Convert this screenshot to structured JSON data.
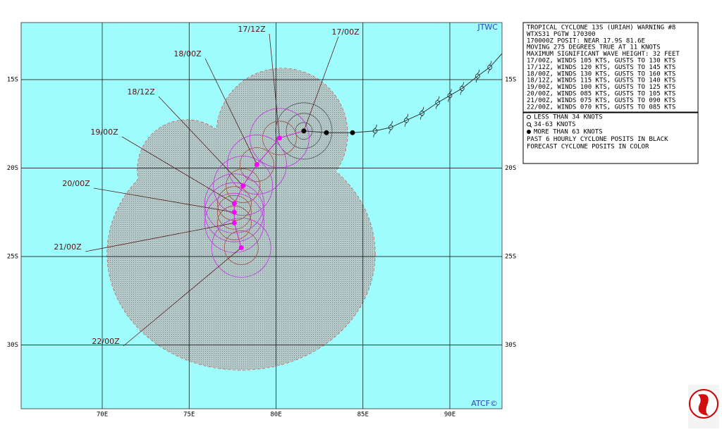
{
  "map": {
    "corner_labels": {
      "top": "JTWC",
      "bottom": "ATCF©"
    },
    "lat_ticks": [
      {
        "value": 15,
        "label": "15S"
      },
      {
        "value": 20,
        "label": "20S"
      },
      {
        "value": 25,
        "label": "25S"
      },
      {
        "value": 30,
        "label": "30S"
      }
    ],
    "lon_ticks": [
      {
        "value": 70,
        "label": "70E"
      },
      {
        "value": 75,
        "label": "75E"
      },
      {
        "value": 80,
        "label": "80E"
      },
      {
        "value": 85,
        "label": "85E"
      },
      {
        "value": 90,
        "label": "90E"
      }
    ],
    "forecast": [
      {
        "label": "17/00Z",
        "lat": 17.9,
        "lon": 81.6
      },
      {
        "label": "17/12Z",
        "lat": 18.3,
        "lon": 80.2
      },
      {
        "label": "18/00Z",
        "lat": 19.8,
        "lon": 78.9
      },
      {
        "label": "18/12Z",
        "lat": 21.0,
        "lon": 78.1
      },
      {
        "label": "19/00Z",
        "lat": 22.0,
        "lon": 77.6
      },
      {
        "label": "20/00Z",
        "lat": 22.5,
        "lon": 77.6
      },
      {
        "label": "21/00Z",
        "lat": 23.1,
        "lon": 77.6
      },
      {
        "label": "22/00Z",
        "lat": 24.5,
        "lon": 78.0
      }
    ],
    "past_track": [
      {
        "lat": 18.0,
        "lon": 82.9
      },
      {
        "lat": 18.0,
        "lon": 84.4
      },
      {
        "lat": 17.9,
        "lon": 85.7
      },
      {
        "lat": 17.7,
        "lon": 86.6
      },
      {
        "lat": 17.3,
        "lon": 87.5
      },
      {
        "lat": 16.9,
        "lon": 88.4
      },
      {
        "lat": 16.3,
        "lon": 89.3
      },
      {
        "lat": 15.9,
        "lon": 90.0
      },
      {
        "lat": 15.5,
        "lon": 90.7
      },
      {
        "lat": 14.8,
        "lon": 91.6
      },
      {
        "lat": 14.3,
        "lon": 92.3
      }
    ]
  },
  "warning": {
    "lines": [
      "TROPICAL CYCLONE 13S (URIAH) WARNING #8",
      "WTXS31 PGTW 170300",
      "170000Z POSIT: NEAR 17.9S 81.6E",
      "MOVING 275 DEGREES TRUE AT 11 KNOTS",
      "MAXIMUM SIGNIFICANT WAVE HEIGHT: 32 FEET",
      "17/00Z, WINDS 105 KTS, GUSTS TO 130 KTS",
      "17/12Z, WINDS 120 KTS, GUSTS TO 145 KTS",
      "18/00Z, WINDS 130 KTS, GUSTS TO 160 KTS",
      "18/12Z, WINDS 115 KTS, GUSTS TO 140 KTS",
      "19/00Z, WINDS 100 KTS, GUSTS TO 125 KTS",
      "20/00Z, WINDS 085 KTS, GUSTS TO 105 KTS",
      "21/00Z, WINDS 075 KTS, GUSTS TO 090 KTS",
      "22/00Z, WINDS 070 KTS, GUSTS TO 085 KTS"
    ]
  },
  "legend": {
    "lines": [
      "LESS THAN 34 KNOTS",
      "34-63 KNOTS",
      "MORE THAN 63 KNOTS",
      "PAST 6 HOURLY CYCLONE POSITS IN BLACK",
      "FORECAST CYCLONE POSITS IN COLOR"
    ]
  }
}
